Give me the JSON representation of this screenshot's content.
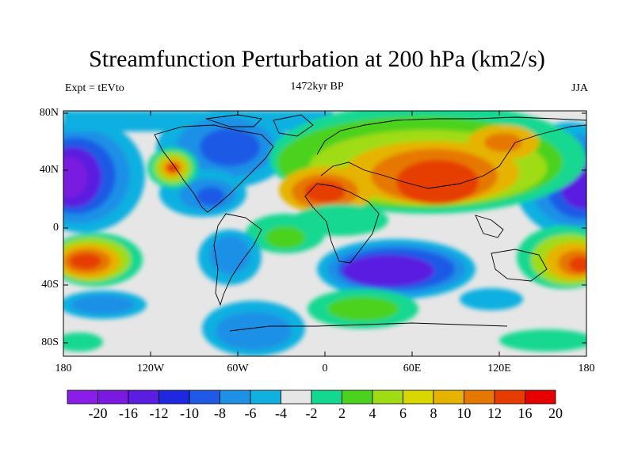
{
  "title": "Streamfunction Perturbation at 200 hPa (km2/s)",
  "center_string": "1472kyr BP",
  "left_string": "Expt = tEVto",
  "right_string": "JJA",
  "lat_labels": [
    "80N",
    "40N",
    "0",
    "40S",
    "80S"
  ],
  "lon_labels": [
    "180",
    "120W",
    "60W",
    "0",
    "60E",
    "120E",
    "180"
  ],
  "colorbar_labels": [
    "-20",
    "-16",
    "-12",
    "-10",
    "-8",
    "-6",
    "-4",
    "-2",
    "2",
    "4",
    "6",
    "8",
    "10",
    "12",
    "16",
    "20"
  ],
  "colors": [
    "#8a1ee8",
    "#7a1ae0",
    "#5a1ee0",
    "#1e28e0",
    "#1e5ae6",
    "#1e90e6",
    "#10b0e0",
    "#e6e6e6",
    "#12d890",
    "#4cd21e",
    "#a0dc14",
    "#d8d800",
    "#e6b400",
    "#e67800",
    "#e63c00",
    "#e60000"
  ]
}
